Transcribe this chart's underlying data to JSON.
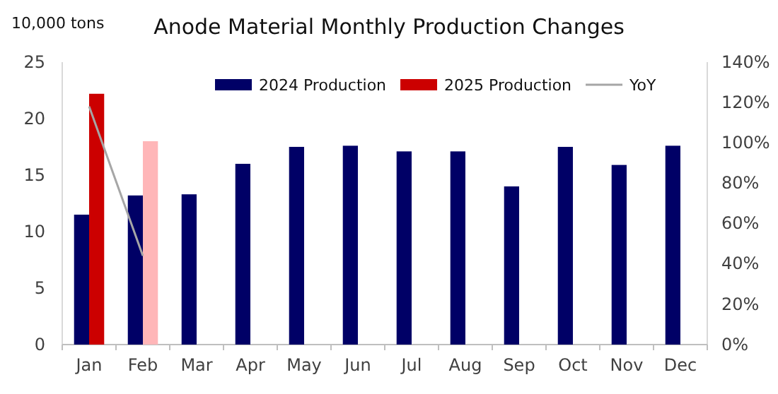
{
  "chart_data": {
    "type": "bar",
    "title": "Anode Material Monthly Production Changes",
    "ylabel": "10,000 tons",
    "categories": [
      "Jan",
      "Feb",
      "Mar",
      "Apr",
      "May",
      "Jun",
      "Jul",
      "Aug",
      "Sep",
      "Oct",
      "Nov",
      "Dec"
    ],
    "series": [
      {
        "name": "2024 Production",
        "color": "#000066",
        "values": [
          11.5,
          13.2,
          13.3,
          16.0,
          17.5,
          17.6,
          17.1,
          17.1,
          14.0,
          17.5,
          15.9,
          17.6
        ]
      },
      {
        "name": "2025 Production",
        "color": "#cc0000",
        "colors": [
          "#cc0000",
          "#ffb6b8",
          null,
          null,
          null,
          null,
          null,
          null,
          null,
          null,
          null,
          null
        ],
        "values": [
          22.2,
          18.0,
          null,
          null,
          null,
          null,
          null,
          null,
          null,
          null,
          null,
          null
        ]
      },
      {
        "name": "YoY",
        "type": "line",
        "axis": "y2",
        "color": "#a6a6a6",
        "values": [
          118,
          44,
          null,
          null,
          null,
          null,
          null,
          null,
          null,
          null,
          null,
          null
        ]
      }
    ],
    "ylim": [
      0,
      25
    ],
    "yticks": [
      0,
      5,
      10,
      15,
      20,
      25
    ],
    "y2lim": [
      0,
      140
    ],
    "y2ticks": [
      {
        "value": 0,
        "label": "0%"
      },
      {
        "value": 20,
        "label": "20%"
      },
      {
        "value": 40,
        "label": "40%"
      },
      {
        "value": 60,
        "label": "60%"
      },
      {
        "value": 80,
        "label": "80%"
      },
      {
        "value": 100,
        "label": "100%"
      },
      {
        "value": 120,
        "label": "120%"
      },
      {
        "value": 140,
        "label": "140%"
      }
    ],
    "legend": "top",
    "grid": false
  }
}
